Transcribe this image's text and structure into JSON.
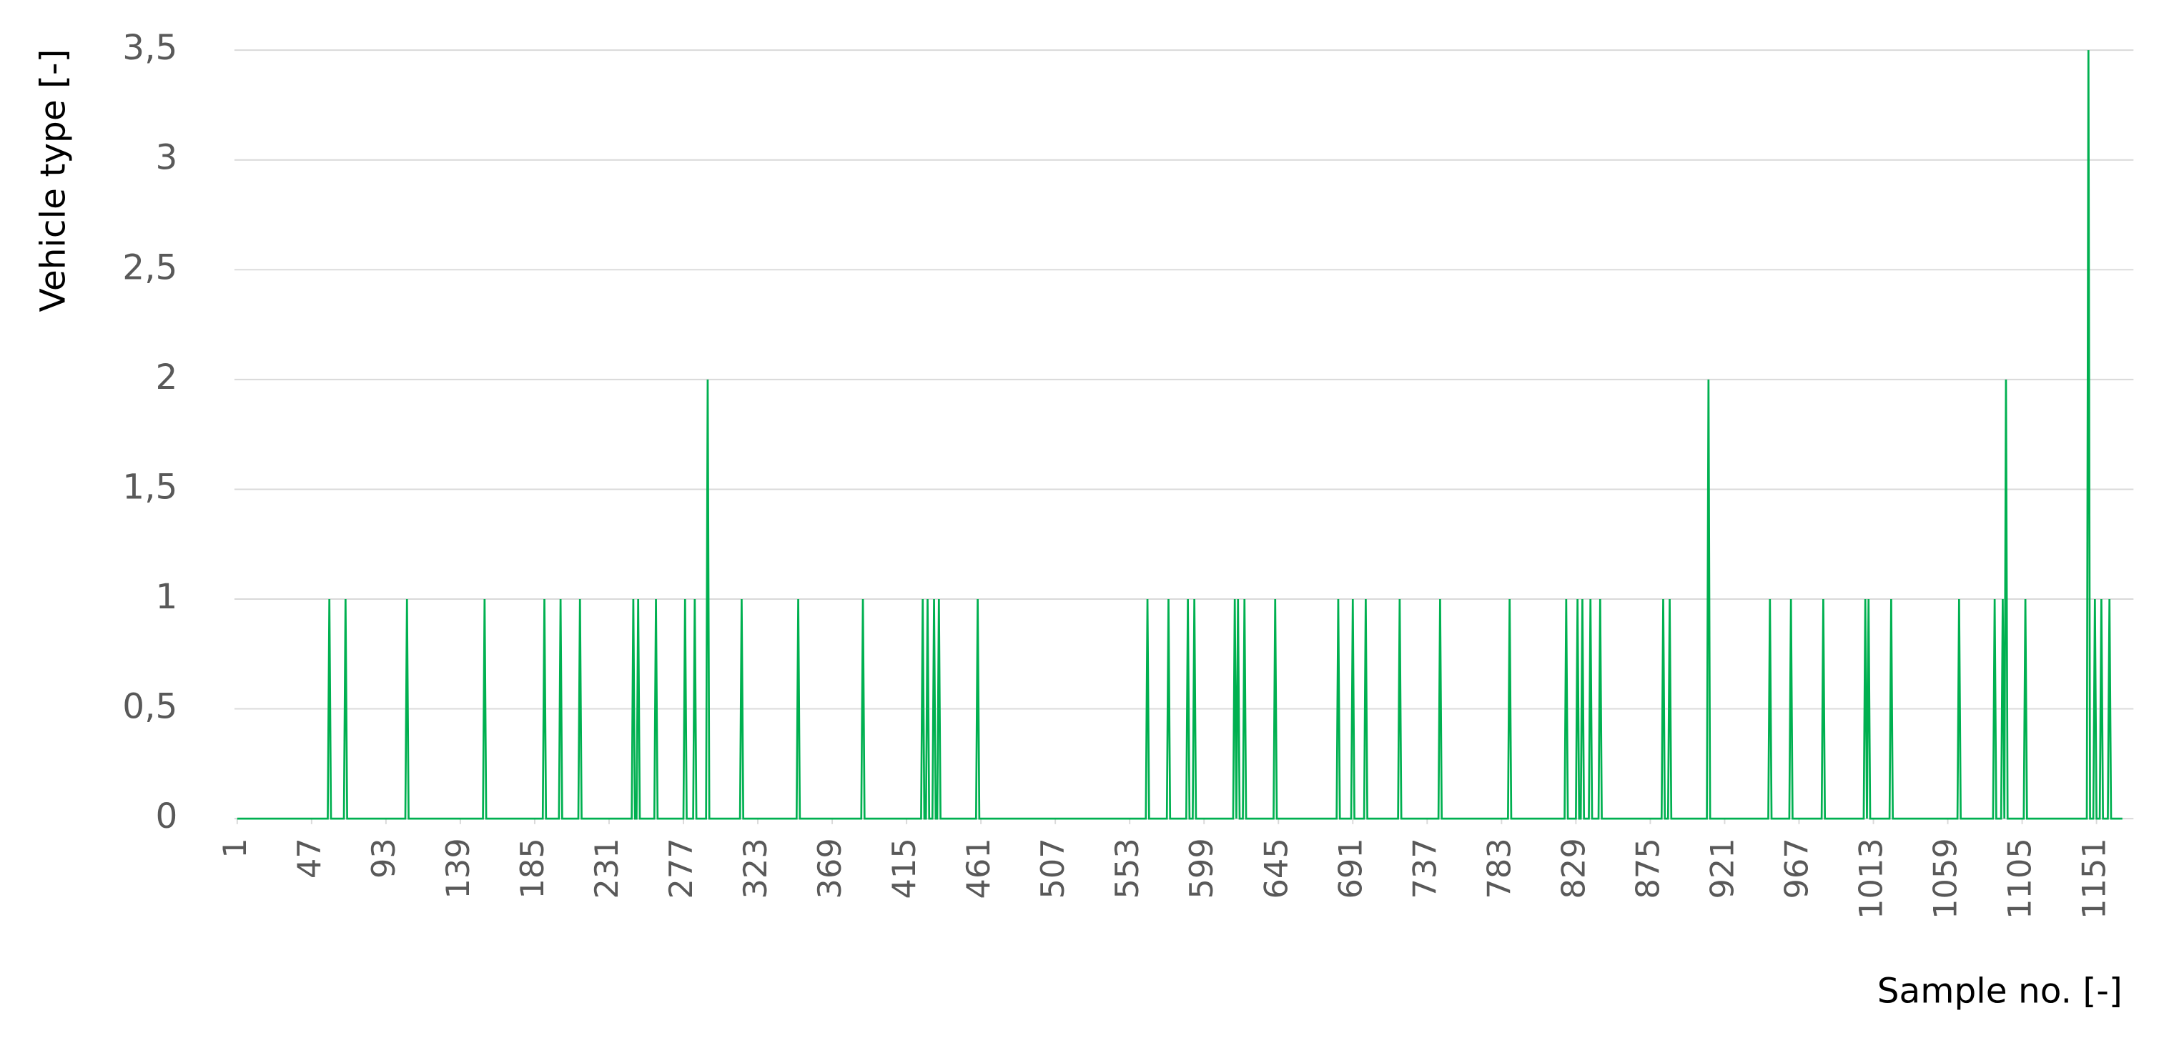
{
  "chart_data": {
    "type": "line",
    "y_label": "Vehicle type [-]",
    "x_label": "Sample no. [-]",
    "color": "#00b050",
    "grid": true,
    "xlim": [
      1,
      1167
    ],
    "ylim": [
      0,
      3.5
    ],
    "xticks": [
      1,
      47,
      93,
      139,
      185,
      231,
      277,
      323,
      369,
      415,
      461,
      507,
      553,
      599,
      645,
      691,
      737,
      783,
      829,
      875,
      921,
      967,
      1013,
      1059,
      1105,
      1151
    ],
    "yticks": [
      0,
      {
        "value": 0.5,
        "label": "0,5"
      },
      1,
      {
        "value": 1.5,
        "label": "1,5"
      },
      2,
      {
        "value": 2.5,
        "label": "2,5"
      },
      3,
      {
        "value": 3.5,
        "label": "3,5"
      }
    ],
    "x": [
      1,
      57,
      58,
      59,
      67,
      68,
      69,
      105,
      106,
      107,
      153,
      154,
      155,
      190,
      191,
      192,
      200,
      201,
      202,
      212,
      213,
      214,
      245,
      246,
      247,
      248,
      249,
      250,
      259,
      260,
      261,
      277,
      278,
      279,
      283,
      284,
      285,
      291,
      292,
      293,
      312,
      313,
      314,
      347,
      348,
      349,
      387,
      388,
      389,
      424,
      425,
      426,
      427,
      428,
      429,
      431,
      432,
      433,
      434,
      435,
      436,
      458,
      459,
      460,
      563,
      564,
      565,
      576,
      577,
      578,
      588,
      589,
      590,
      592,
      593,
      594,
      617,
      618,
      619,
      620,
      621,
      623,
      624,
      625,
      642,
      643,
      644,
      681,
      682,
      683,
      690,
      691,
      692,
      698,
      699,
      700,
      719,
      720,
      721,
      744,
      745,
      746,
      787,
      788,
      789,
      822,
      823,
      824,
      829,
      830,
      831,
      832,
      833,
      834,
      837,
      838,
      839,
      843,
      844,
      845,
      882,
      883,
      884,
      886,
      887,
      888,
      910,
      911,
      912,
      948,
      949,
      950,
      961,
      962,
      963,
      981,
      982,
      983,
      1007,
      1008,
      1009,
      1010,
      1011,
      1023,
      1024,
      1025,
      1065,
      1066,
      1067,
      1087,
      1088,
      1089,
      1092,
      1093,
      1094,
      1095,
      1096,
      1106,
      1107,
      1108,
      1145,
      1146,
      1147,
      1149,
      1150,
      1151,
      1153,
      1154,
      1155,
      1158,
      1159,
      1160,
      1167
    ],
    "values": [
      0,
      0,
      1,
      0,
      0,
      1,
      0,
      0,
      1,
      0,
      0,
      1,
      0,
      0,
      1,
      0,
      0,
      1,
      0,
      0,
      1,
      0,
      0,
      1,
      0,
      0,
      1,
      0,
      0,
      1,
      0,
      0,
      1,
      0,
      0,
      1,
      0,
      0,
      2,
      0,
      0,
      1,
      0,
      0,
      1,
      0,
      0,
      1,
      0,
      0,
      1,
      0,
      0,
      1,
      0,
      0,
      1,
      0,
      0,
      1,
      0,
      0,
      1,
      0,
      0,
      1,
      0,
      0,
      1,
      0,
      0,
      1,
      0,
      0,
      1,
      0,
      0,
      1,
      0,
      1,
      0,
      0,
      1,
      0,
      0,
      1,
      0,
      0,
      1,
      0,
      0,
      1,
      0,
      0,
      1,
      0,
      0,
      1,
      0,
      0,
      1,
      0,
      0,
      1,
      0,
      0,
      1,
      0,
      0,
      1,
      0,
      0,
      1,
      0,
      0,
      1,
      0,
      0,
      1,
      0,
      0,
      1,
      0,
      0,
      1,
      0,
      0,
      2,
      0,
      0,
      1,
      0,
      0,
      1,
      0,
      0,
      1,
      0,
      0,
      1,
      0,
      1,
      0,
      0,
      1,
      0,
      0,
      1,
      0,
      0,
      1,
      0,
      0,
      1,
      0,
      2,
      0,
      0,
      1,
      0,
      0,
      3.5,
      0,
      0,
      1,
      0,
      0,
      1,
      0,
      0,
      1,
      0,
      0
    ]
  }
}
